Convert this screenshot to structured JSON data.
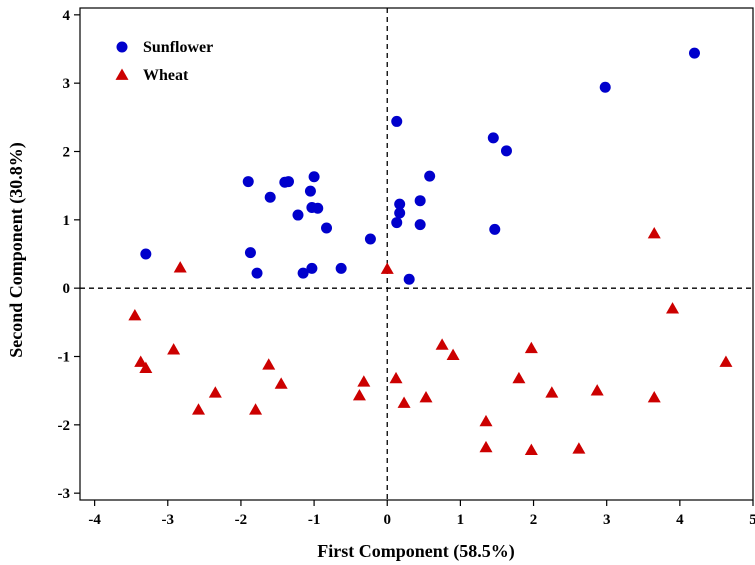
{
  "chart_data": {
    "type": "scatter",
    "xlabel": "First Component (58.5%)",
    "ylabel": "Second Component (30.8%)",
    "xlim": [
      -4.2,
      5.0
    ],
    "ylim": [
      -3.1,
      4.1
    ],
    "xticks": [
      -4,
      -3,
      -2,
      -1,
      0,
      1,
      2,
      3,
      4,
      5
    ],
    "yticks": [
      -3,
      -2,
      -1,
      0,
      1,
      2,
      3,
      4
    ],
    "reference_lines": {
      "x": 0,
      "y": 0,
      "style": "dashed"
    },
    "legend_position": "top-left",
    "grid": false,
    "series": [
      {
        "name": "Sunflower",
        "marker": "circle",
        "color": "#0000cc",
        "points": [
          [
            -3.3,
            0.5
          ],
          [
            -1.9,
            1.56
          ],
          [
            -1.87,
            0.52
          ],
          [
            -1.78,
            0.22
          ],
          [
            -1.6,
            1.33
          ],
          [
            -1.4,
            1.55
          ],
          [
            -1.35,
            1.56
          ],
          [
            -1.22,
            1.07
          ],
          [
            -1.15,
            0.22
          ],
          [
            -1.05,
            1.42
          ],
          [
            -1.03,
            1.18
          ],
          [
            -1.03,
            0.29
          ],
          [
            -1.0,
            1.63
          ],
          [
            -0.95,
            1.17
          ],
          [
            -0.83,
            0.88
          ],
          [
            -0.63,
            0.29
          ],
          [
            -0.23,
            0.72
          ],
          [
            0.13,
            2.44
          ],
          [
            0.13,
            0.96
          ],
          [
            0.17,
            1.23
          ],
          [
            0.17,
            1.1
          ],
          [
            0.3,
            0.13
          ],
          [
            0.45,
            1.28
          ],
          [
            0.45,
            0.93
          ],
          [
            0.58,
            1.64
          ],
          [
            1.45,
            2.2
          ],
          [
            1.47,
            0.86
          ],
          [
            1.63,
            2.01
          ],
          [
            2.98,
            2.94
          ],
          [
            4.2,
            3.44
          ]
        ]
      },
      {
        "name": "Wheat",
        "marker": "triangle",
        "color": "#cc0000",
        "points": [
          [
            -3.45,
            -0.4
          ],
          [
            -3.37,
            -1.08
          ],
          [
            -3.3,
            -1.17
          ],
          [
            -2.92,
            -0.9
          ],
          [
            -2.83,
            0.3
          ],
          [
            -2.58,
            -1.78
          ],
          [
            -2.35,
            -1.53
          ],
          [
            -1.8,
            -1.78
          ],
          [
            -1.62,
            -1.12
          ],
          [
            -1.45,
            -1.4
          ],
          [
            -0.38,
            -1.57
          ],
          [
            -0.32,
            -1.37
          ],
          [
            0.0,
            0.28
          ],
          [
            0.12,
            -1.32
          ],
          [
            0.23,
            -1.68
          ],
          [
            0.53,
            -1.6
          ],
          [
            0.75,
            -0.83
          ],
          [
            0.9,
            -0.98
          ],
          [
            1.35,
            -1.95
          ],
          [
            1.35,
            -2.33
          ],
          [
            1.8,
            -1.32
          ],
          [
            1.97,
            -0.88
          ],
          [
            1.97,
            -2.37
          ],
          [
            2.25,
            -1.53
          ],
          [
            2.62,
            -2.35
          ],
          [
            2.87,
            -1.5
          ],
          [
            3.65,
            0.8
          ],
          [
            3.65,
            -1.6
          ],
          [
            3.9,
            -0.3
          ],
          [
            4.63,
            -1.08
          ]
        ]
      }
    ]
  }
}
